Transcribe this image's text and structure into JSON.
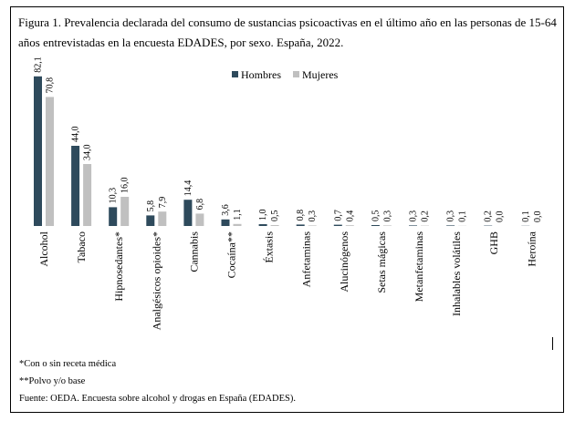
{
  "figure": {
    "caption": "Figura 1. Prevalencia declarada del consumo de sustancias psicoactivas en el último año en las personas de 15-64 años entrevistadas en la encuesta EDADES, por sexo. España, 2022."
  },
  "notes": [
    "*Con o sin receta médica",
    "**Polvo y/o base",
    "Fuente: OEDA. Encuesta sobre alcohol y drogas en España (EDADES)."
  ],
  "chart_data": {
    "type": "bar",
    "title": "",
    "xlabel": "",
    "ylabel": "",
    "ylim": [
      0,
      90
    ],
    "grid": false,
    "legend_position": "top-center",
    "categories": [
      "Alcohol",
      "Tabaco",
      "Hipnosedantes*",
      "Analgésicos opioides*",
      "Cannabis",
      "Cocaína**",
      "Éxtasis",
      "Anfetaminas",
      "Alucinógenos",
      "Setas mágicas",
      "Metanfetaminas",
      "Inhalables volátiles",
      "GHB",
      "Heroína"
    ],
    "series": [
      {
        "name": "Hombres",
        "color": "#2e4a5c",
        "values": [
          82.1,
          44.0,
          10.3,
          5.8,
          14.4,
          3.6,
          1.0,
          0.8,
          0.7,
          0.5,
          0.3,
          0.3,
          0.2,
          0.1
        ],
        "labels": [
          "82,1",
          "44,0",
          "10,3",
          "5,8",
          "14,4",
          "3,6",
          "1,0",
          "0,8",
          "0,7",
          "0,5",
          "0,3",
          "0,3",
          "0,2",
          "0,1"
        ]
      },
      {
        "name": "Mujeres",
        "color": "#c0c0c0",
        "values": [
          70.8,
          34.0,
          16.0,
          7.9,
          6.8,
          1.1,
          0.5,
          0.3,
          0.4,
          0.3,
          0.2,
          0.1,
          0.0,
          0.0
        ],
        "labels": [
          "70,8",
          "34,0",
          "16,0",
          "7,9",
          "6,8",
          "1,1",
          "0,5",
          "0,3",
          "0,4",
          "0,3",
          "0,2",
          "0,1",
          "0,0",
          "0,0"
        ]
      }
    ]
  }
}
